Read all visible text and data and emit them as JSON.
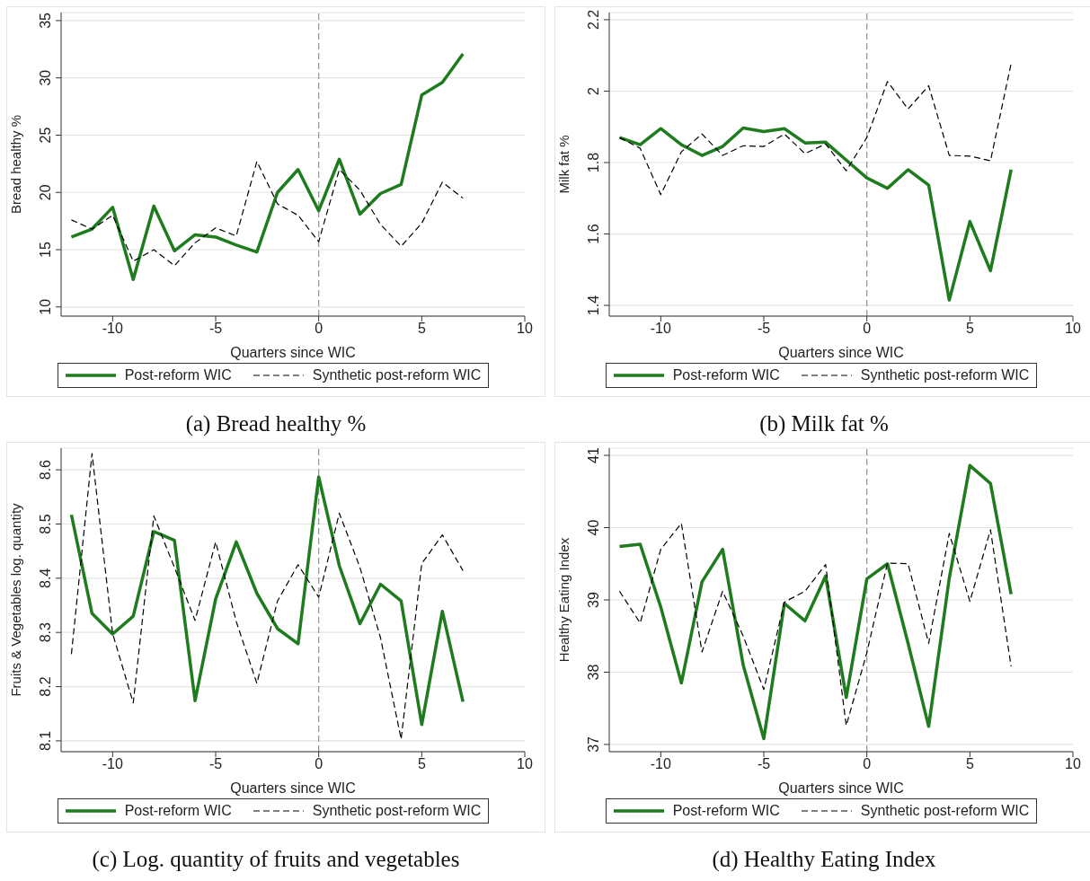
{
  "chart_data": [
    {
      "type": "line",
      "title": "(a) Bread healthy %",
      "xlabel": "Quarters since WIC",
      "ylabel": "Bread healthy %",
      "x": [
        -12,
        -11,
        -10,
        -9,
        -8,
        -7,
        -6,
        -5,
        -4,
        -3,
        -2,
        -1,
        0,
        1,
        2,
        3,
        4,
        5,
        6,
        7
      ],
      "series": [
        {
          "name": "Post-reform WIC",
          "color": "#1e7b1e",
          "line_style": "solid",
          "values": [
            16.1,
            16.8,
            18.7,
            12.4,
            18.8,
            14.9,
            16.3,
            16.1,
            15.4,
            14.8,
            20.0,
            22.0,
            18.4,
            22.9,
            18.1,
            19.9,
            20.7,
            28.5,
            29.6,
            32.1
          ]
        },
        {
          "name": "Synthetic post-reform WIC",
          "color": "#000000",
          "line_style": "dashed",
          "values": [
            17.6,
            16.8,
            18.0,
            14.0,
            15.0,
            13.6,
            15.6,
            16.9,
            16.2,
            22.7,
            19.0,
            18.0,
            15.7,
            22.0,
            20.2,
            17.2,
            15.3,
            17.3,
            20.9,
            19.5
          ]
        }
      ],
      "xlim": [
        -12.5,
        10
      ],
      "xticks": [
        -10,
        -5,
        0,
        5,
        10
      ],
      "ylim": [
        9.2,
        35.7
      ],
      "yticks": [
        10,
        15,
        20,
        25,
        30,
        35
      ],
      "grid": "y",
      "legend": "bottom",
      "ref_lines": [
        {
          "axis": "x",
          "value": 0,
          "color": "#999999",
          "line_style": "dashed"
        }
      ]
    },
    {
      "type": "line",
      "title": "(b) Milk fat %",
      "xlabel": "Quarters since WIC",
      "ylabel": "Milk fat %",
      "x": [
        -12,
        -11,
        -10,
        -9,
        -8,
        -7,
        -6,
        -5,
        -4,
        -3,
        -2,
        -1,
        0,
        1,
        2,
        3,
        4,
        5,
        6,
        7
      ],
      "series": [
        {
          "name": "Post-reform WIC",
          "color": "#1e7b1e",
          "line_style": "solid",
          "values": [
            1.87,
            1.85,
            1.895,
            1.85,
            1.82,
            1.845,
            1.897,
            1.887,
            1.895,
            1.855,
            1.857,
            1.807,
            1.757,
            1.728,
            1.78,
            1.737,
            1.415,
            1.635,
            1.497,
            1.78
          ]
        },
        {
          "name": "Synthetic post-reform WIC",
          "color": "#000000",
          "line_style": "dashed",
          "values": [
            1.87,
            1.84,
            1.71,
            1.83,
            1.88,
            1.82,
            1.847,
            1.845,
            1.88,
            1.825,
            1.852,
            1.777,
            1.87,
            2.027,
            1.95,
            2.015,
            1.82,
            1.818,
            1.805,
            2.077
          ]
        }
      ],
      "xlim": [
        -12.5,
        10
      ],
      "xticks": [
        -10,
        -5,
        0,
        5,
        10
      ],
      "ylim": [
        1.37,
        2.22
      ],
      "yticks": [
        1.4,
        1.6,
        1.8,
        2,
        2.2
      ],
      "grid": "y",
      "legend": "bottom",
      "ref_lines": [
        {
          "axis": "x",
          "value": 0,
          "color": "#999999",
          "line_style": "dashed"
        }
      ]
    },
    {
      "type": "line",
      "title": "(c) Log. quantity of fruits and vegetables",
      "xlabel": "Quarters since WIC",
      "ylabel": "Fruits & Vegetables log. quantity",
      "x": [
        -12,
        -11,
        -10,
        -9,
        -8,
        -7,
        -6,
        -5,
        -4,
        -3,
        -2,
        -1,
        0,
        1,
        2,
        3,
        4,
        5,
        6,
        7
      ],
      "series": [
        {
          "name": "Post-reform WIC",
          "color": "#1e7b1e",
          "line_style": "solid",
          "values": [
            8.517,
            8.335,
            8.297,
            8.33,
            8.486,
            8.47,
            8.174,
            8.362,
            8.467,
            8.372,
            8.307,
            8.279,
            8.587,
            8.423,
            8.316,
            8.389,
            8.358,
            8.13,
            8.339,
            8.172
          ]
        },
        {
          "name": "Synthetic post-reform WIC",
          "color": "#000000",
          "line_style": "dashed",
          "values": [
            8.26,
            8.63,
            8.298,
            8.17,
            8.515,
            8.42,
            8.322,
            8.467,
            8.32,
            8.206,
            8.358,
            8.425,
            8.365,
            8.52,
            8.42,
            8.29,
            8.103,
            8.427,
            8.48,
            8.414
          ]
        }
      ],
      "xlim": [
        -12.5,
        10
      ],
      "xticks": [
        -10,
        -5,
        0,
        5,
        10
      ],
      "ylim": [
        8.08,
        8.64
      ],
      "yticks": [
        8.1,
        8.2,
        8.3,
        8.4,
        8.5,
        8.6
      ],
      "grid": "y",
      "legend": "bottom",
      "ref_lines": [
        {
          "axis": "x",
          "value": 0,
          "color": "#999999",
          "line_style": "dashed"
        }
      ]
    },
    {
      "type": "line",
      "title": "(d) Healthy Eating Index",
      "xlabel": "Quarters since WIC",
      "ylabel": "Healthy Eating Index",
      "x": [
        -12,
        -11,
        -10,
        -9,
        -8,
        -7,
        -6,
        -5,
        -4,
        -3,
        -2,
        -1,
        0,
        1,
        2,
        3,
        4,
        5,
        6,
        7
      ],
      "series": [
        {
          "name": "Post-reform WIC",
          "color": "#1e7b1e",
          "line_style": "solid",
          "values": [
            39.74,
            39.77,
            38.9,
            37.85,
            39.25,
            39.7,
            38.1,
            37.08,
            38.95,
            38.71,
            39.33,
            37.65,
            39.29,
            39.5,
            38.4,
            37.25,
            39.3,
            40.86,
            40.61,
            39.08
          ]
        },
        {
          "name": "Synthetic post-reform WIC",
          "color": "#000000",
          "line_style": "dashed",
          "values": [
            39.12,
            38.68,
            39.7,
            40.06,
            38.28,
            39.12,
            38.5,
            37.76,
            38.97,
            39.12,
            39.49,
            37.26,
            38.27,
            39.51,
            39.5,
            38.4,
            39.92,
            38.98,
            39.97,
            38.08
          ]
        }
      ],
      "xlim": [
        -12.5,
        10
      ],
      "xticks": [
        -10,
        -5,
        0,
        5,
        10
      ],
      "ylim": [
        36.9,
        41.1
      ],
      "yticks": [
        37,
        38,
        39,
        40,
        41
      ],
      "grid": "y",
      "legend": "bottom",
      "ref_lines": [
        {
          "axis": "x",
          "value": 0,
          "color": "#999999",
          "line_style": "dashed"
        }
      ]
    }
  ]
}
